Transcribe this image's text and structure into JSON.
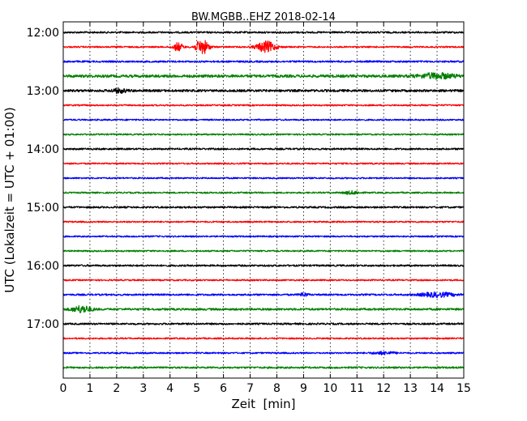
{
  "chart_data": {
    "type": "line",
    "title": "BW.MGBB..EHZ 2018-02-14",
    "xlabel": "Zeit  [min]",
    "ylabel": "UTC (Lokalzeit = UTC + 01:00)",
    "xlim": [
      0,
      15
    ],
    "x_ticks": [
      "0",
      "1",
      "2",
      "3",
      "4",
      "5",
      "6",
      "7",
      "8",
      "9",
      "10",
      "11",
      "12",
      "13",
      "14",
      "15"
    ],
    "y_tick_labels": [
      "12:00",
      "13:00",
      "14:00",
      "15:00",
      "16:00",
      "17:00"
    ],
    "grid_x": true,
    "trace_colors": [
      "#000000",
      "#ff0000",
      "#0000ff",
      "#008000"
    ],
    "traces": [
      {
        "time": "12:00",
        "amplitude": 0.12,
        "events": []
      },
      {
        "time": "12:15",
        "amplitude": 0.1,
        "events": [
          {
            "t": 4.3,
            "amp": 0.55,
            "dur": 0.25
          },
          {
            "t": 5.2,
            "amp": 1.0,
            "dur": 0.35
          },
          {
            "t": 7.6,
            "amp": 0.75,
            "dur": 0.5
          }
        ]
      },
      {
        "time": "12:30",
        "amplitude": 0.12,
        "events": []
      },
      {
        "time": "12:45",
        "amplitude": 0.18,
        "events": [
          {
            "t": 14.0,
            "amp": 0.35,
            "dur": 0.9
          }
        ]
      },
      {
        "time": "13:00",
        "amplitude": 0.16,
        "events": [
          {
            "t": 2.1,
            "amp": 0.25,
            "dur": 0.4
          }
        ]
      },
      {
        "time": "13:15",
        "amplitude": 0.1,
        "events": []
      },
      {
        "time": "13:30",
        "amplitude": 0.1,
        "events": []
      },
      {
        "time": "13:45",
        "amplitude": 0.1,
        "events": []
      },
      {
        "time": "14:00",
        "amplitude": 0.12,
        "events": []
      },
      {
        "time": "14:15",
        "amplitude": 0.1,
        "events": []
      },
      {
        "time": "14:30",
        "amplitude": 0.1,
        "events": []
      },
      {
        "time": "14:45",
        "amplitude": 0.1,
        "events": [
          {
            "t": 10.8,
            "amp": 0.2,
            "dur": 0.4
          }
        ]
      },
      {
        "time": "15:00",
        "amplitude": 0.12,
        "events": []
      },
      {
        "time": "15:15",
        "amplitude": 0.1,
        "events": []
      },
      {
        "time": "15:30",
        "amplitude": 0.1,
        "events": []
      },
      {
        "time": "15:45",
        "amplitude": 0.1,
        "events": []
      },
      {
        "time": "16:00",
        "amplitude": 0.12,
        "events": []
      },
      {
        "time": "16:15",
        "amplitude": 0.1,
        "events": []
      },
      {
        "time": "16:30",
        "amplitude": 0.12,
        "events": [
          {
            "t": 9.0,
            "amp": 0.25,
            "dur": 0.2
          },
          {
            "t": 14.0,
            "amp": 0.28,
            "dur": 0.9
          }
        ]
      },
      {
        "time": "16:45",
        "amplitude": 0.14,
        "events": [
          {
            "t": 0.7,
            "amp": 0.45,
            "dur": 0.5
          }
        ]
      },
      {
        "time": "17:00",
        "amplitude": 0.12,
        "events": []
      },
      {
        "time": "17:15",
        "amplitude": 0.1,
        "events": []
      },
      {
        "time": "17:30",
        "amplitude": 0.1,
        "events": [
          {
            "t": 12.0,
            "amp": 0.18,
            "dur": 0.6
          }
        ]
      },
      {
        "time": "17:45",
        "amplitude": 0.12,
        "events": []
      }
    ]
  }
}
